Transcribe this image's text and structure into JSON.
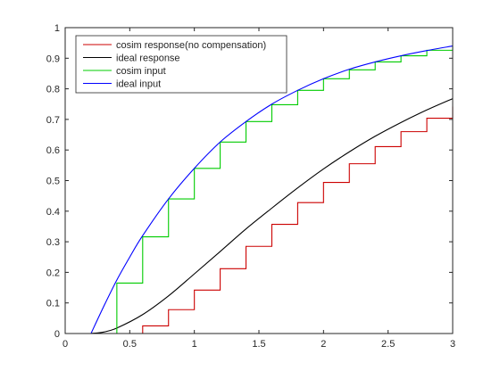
{
  "chart_data": {
    "type": "line",
    "title": "",
    "xlabel": "",
    "ylabel": "",
    "xlim": [
      0,
      3
    ],
    "ylim": [
      0,
      1
    ],
    "xticks": [
      0,
      0.5,
      1,
      1.5,
      2,
      2.5,
      3
    ],
    "xtick_labels": [
      "0",
      "0.5",
      "1",
      "1.5",
      "2",
      "2.5",
      "3"
    ],
    "yticks": [
      0,
      0.1,
      0.2,
      0.3,
      0.4,
      0.5,
      0.6,
      0.7,
      0.8,
      0.9,
      1
    ],
    "ytick_labels": [
      "0",
      "0.1",
      "0.2",
      "0.3",
      "0.4",
      "0.5",
      "0.6",
      "0.7",
      "0.8",
      "0.9",
      "1"
    ],
    "grid": false,
    "legend_position": "top-left",
    "series": [
      {
        "name": "cosim response(no compensation)",
        "color": "#cc0000",
        "style": "step",
        "x": [
          0,
          0.6,
          0.8,
          1.0,
          1.2,
          1.4,
          1.6,
          1.8,
          2.0,
          2.2,
          2.4,
          2.6,
          2.8,
          3.0
        ],
        "y": [
          0,
          0.025,
          0.078,
          0.142,
          0.212,
          0.285,
          0.357,
          0.428,
          0.494,
          0.555,
          0.611,
          0.66,
          0.704,
          0.742
        ]
      },
      {
        "name": "ideal response",
        "color": "#000000",
        "style": "line",
        "x": [
          0,
          0.2,
          0.3,
          0.4,
          0.6,
          0.8,
          1.0,
          1.2,
          1.4,
          1.6,
          1.8,
          2.0,
          2.2,
          2.4,
          2.6,
          2.8,
          3.0
        ],
        "y": [
          0,
          0,
          0.005,
          0.018,
          0.062,
          0.123,
          0.195,
          0.268,
          0.342,
          0.41,
          0.476,
          0.538,
          0.594,
          0.645,
          0.69,
          0.731,
          0.768
        ]
      },
      {
        "name": "cosim input",
        "color": "#00cc00",
        "style": "step",
        "x": [
          0,
          0.4,
          0.6,
          0.8,
          1.0,
          1.2,
          1.4,
          1.6,
          1.8,
          2.0,
          2.2,
          2.4,
          2.6,
          2.8,
          3.0
        ],
        "y": [
          0,
          0.165,
          0.316,
          0.44,
          0.54,
          0.626,
          0.693,
          0.748,
          0.795,
          0.833,
          0.862,
          0.888,
          0.908,
          0.926,
          0.94
        ]
      },
      {
        "name": "ideal input",
        "color": "#0000ff",
        "style": "line",
        "x": [
          0,
          0.2,
          0.3,
          0.4,
          0.5,
          0.6,
          0.8,
          1.0,
          1.2,
          1.4,
          1.6,
          1.8,
          2.0,
          2.2,
          2.4,
          2.6,
          2.8,
          3.0
        ],
        "y": [
          0,
          0,
          0.09,
          0.175,
          0.25,
          0.32,
          0.44,
          0.54,
          0.626,
          0.693,
          0.75,
          0.795,
          0.833,
          0.864,
          0.888,
          0.908,
          0.925,
          0.94
        ]
      }
    ]
  }
}
